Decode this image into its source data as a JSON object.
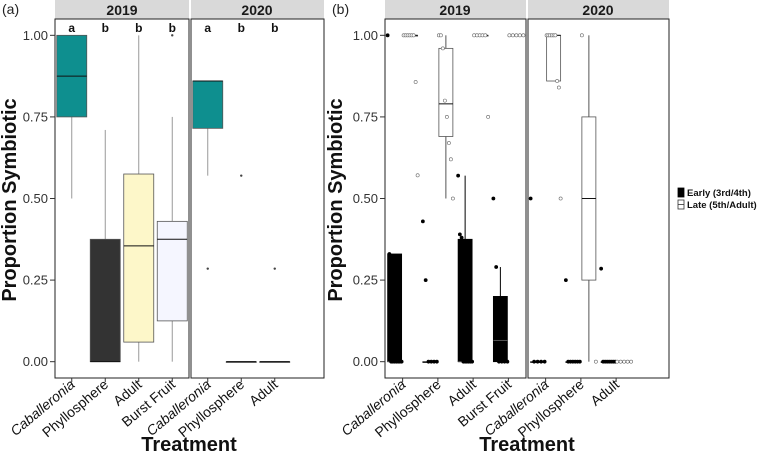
{
  "chart_data": [
    {
      "panel_label": "(a)",
      "type": "box",
      "ylabel": "Proportion Symbiotic",
      "xlabel": "Treatment",
      "ylim": [
        -0.05,
        1.05
      ],
      "yticks": [
        0.0,
        0.25,
        0.5,
        0.75,
        1.0
      ],
      "ytick_labels": [
        "0.00",
        "0.25",
        "0.50",
        "0.75",
        "1.00"
      ],
      "facets": [
        {
          "label": "2019",
          "groups": [
            {
              "category": "Caballeronia",
              "italic": true,
              "letter": "a",
              "color": "#0e8f8f",
              "min": 0.5,
              "q1": 0.75,
              "median": 0.875,
              "q3": 1.0,
              "max": 1.0,
              "outliers": []
            },
            {
              "category": "Phyllosphere",
              "italic": false,
              "letter": "b",
              "color": "#333333",
              "min": 0.0,
              "q1": 0.0,
              "median": 0.0,
              "q3": 0.375,
              "max": 0.71,
              "outliers": []
            },
            {
              "category": "Adult",
              "italic": false,
              "letter": "b",
              "color": "#fdf7c9",
              "min": 0.0,
              "q1": 0.06,
              "median": 0.355,
              "q3": 0.575,
              "max": 1.0,
              "outliers": []
            },
            {
              "category": "Burst Fruit",
              "italic": false,
              "letter": "b",
              "color": "#f5f6ff",
              "min": 0.0,
              "q1": 0.125,
              "median": 0.375,
              "q3": 0.43,
              "max": 0.75,
              "outliers": [
                1.0
              ]
            }
          ]
        },
        {
          "label": "2020",
          "groups": [
            {
              "category": "Caballeronia",
              "italic": true,
              "letter": "a",
              "color": "#0e8f8f",
              "min": 0.57,
              "q1": 0.715,
              "median": 0.86,
              "q3": 0.86,
              "max": 0.86,
              "outliers": [
                0.285
              ]
            },
            {
              "category": "Phyllosphere",
              "italic": false,
              "letter": "b",
              "color": "#333333",
              "min": 0.0,
              "q1": 0.0,
              "median": 0.0,
              "q3": 0.0,
              "max": 0.0,
              "outliers": [
                0.57
              ]
            },
            {
              "category": "Adult",
              "italic": false,
              "letter": "b",
              "color": "#fdf7c9",
              "min": 0.0,
              "q1": 0.0,
              "median": 0.0,
              "q3": 0.0,
              "max": 0.0,
              "outliers": [
                0.285
              ]
            }
          ]
        }
      ]
    },
    {
      "panel_label": "(b)",
      "type": "box",
      "ylabel": "Proportion Symbiotic",
      "xlabel": "Treatment",
      "ylim": [
        -0.05,
        1.05
      ],
      "yticks": [
        0.0,
        0.25,
        0.5,
        0.75,
        1.0
      ],
      "ytick_labels": [
        "0.00",
        "0.25",
        "0.50",
        "0.75",
        "1.00"
      ],
      "legend": {
        "entries": [
          {
            "name": "Early (3rd/4th)",
            "fill": "#000000"
          },
          {
            "name": "Late (5th/Adult)",
            "fill": "#ffffff"
          }
        ],
        "position": "right"
      },
      "facets": [
        {
          "label": "2019",
          "groups": [
            {
              "category": "Caballeronia",
              "italic": true,
              "early": {
                "min": 0.0,
                "q1": 0.0,
                "median": 0.0,
                "q3": 0.33,
                "max": 0.33,
                "points": [
                  1.0,
                  0.33,
                  0.0,
                  0.0,
                  0.0,
                  0.0,
                  0.0,
                  0.0,
                  0.0
                ]
              },
              "late": {
                "min": 1.0,
                "q1": 1.0,
                "median": 1.0,
                "q3": 1.0,
                "max": 1.0,
                "points": [
                  1.0,
                  1.0,
                  1.0,
                  1.0,
                  1.0,
                  1.0,
                  0.857,
                  0.571
                ]
              }
            },
            {
              "category": "Phyllosphere",
              "italic": false,
              "early": {
                "min": 0.0,
                "q1": 0.0,
                "median": 0.0,
                "q3": 0.0,
                "max": 0.0,
                "points": [
                  0.43,
                  0.25,
                  0.0,
                  0.0,
                  0.0,
                  0.0
                ]
              },
              "late": {
                "min": 0.5,
                "q1": 0.69,
                "median": 0.79,
                "q3": 0.96,
                "max": 1.0,
                "points": [
                  1.0,
                  1.0,
                  0.96,
                  0.8,
                  0.75,
                  0.67,
                  0.62,
                  0.5
                ]
              }
            },
            {
              "category": "Adult",
              "italic": false,
              "early": {
                "min": 0.0,
                "q1": 0.0,
                "median": 0.0,
                "q3": 0.375,
                "max": 0.57,
                "points": [
                  0.57,
                  0.39,
                  0.38,
                  0.0,
                  0.0,
                  0.0,
                  0.0,
                  0.0,
                  0.0
                ]
              },
              "late": {
                "min": 1.0,
                "q1": 1.0,
                "median": 1.0,
                "q3": 1.0,
                "max": 1.0,
                "points": [
                  1.0,
                  1.0,
                  1.0,
                  1.0,
                  1.0,
                  0.75
                ]
              }
            },
            {
              "category": "Burst Fruit",
              "italic": false,
              "early": {
                "min": 0.0,
                "q1": 0.0,
                "median": 0.065,
                "q3": 0.2,
                "max": 0.29,
                "points": [
                  0.5,
                  0.29,
                  0.0,
                  0.0,
                  0.0,
                  0.0
                ]
              },
              "late": {
                "min": 1.0,
                "q1": 1.0,
                "median": 1.0,
                "q3": 1.0,
                "max": 1.0,
                "points": [
                  1.0,
                  1.0,
                  1.0,
                  1.0,
                  1.0
                ]
              }
            }
          ]
        },
        {
          "label": "2020",
          "groups": [
            {
              "category": "Caballeronia",
              "italic": true,
              "early": {
                "min": 0.0,
                "q1": 0.0,
                "median": 0.0,
                "q3": 0.0,
                "max": 0.0,
                "points": [
                  0.5,
                  0.0,
                  0.0,
                  0.0,
                  0.0
                ]
              },
              "late": {
                "min": 0.86,
                "q1": 0.86,
                "median": 1.0,
                "q3": 1.0,
                "max": 1.0,
                "points": [
                  1.0,
                  1.0,
                  1.0,
                  1.0,
                  1.0,
                  1.0,
                  0.86,
                  0.84,
                  0.5
                ]
              }
            },
            {
              "category": "Phyllosphere",
              "italic": false,
              "early": {
                "min": 0.0,
                "q1": 0.0,
                "median": 0.0,
                "q3": 0.0,
                "max": 0.0,
                "points": [
                  0.25,
                  0.0,
                  0.0,
                  0.0,
                  0.0,
                  0.0,
                  0.0
                ]
              },
              "late": {
                "min": 0.0,
                "q1": 0.25,
                "median": 0.5,
                "q3": 0.75,
                "max": 1.0,
                "points": [
                  1.0,
                  0.0
                ]
              }
            },
            {
              "category": "Adult",
              "italic": false,
              "early": {
                "min": 0.0,
                "q1": 0.0,
                "median": 0.0,
                "q3": 0.0,
                "max": 0.0,
                "points": [
                  0.285,
                  0.0,
                  0.0,
                  0.0,
                  0.0,
                  0.0,
                  0.0,
                  0.0
                ]
              },
              "late": {
                "min": 0.0,
                "q1": 0.0,
                "median": 0.0,
                "q3": 0.0,
                "max": 0.0,
                "points": [
                  0.0,
                  0.0,
                  0.0,
                  0.0,
                  0.0
                ]
              }
            }
          ]
        }
      ]
    }
  ]
}
